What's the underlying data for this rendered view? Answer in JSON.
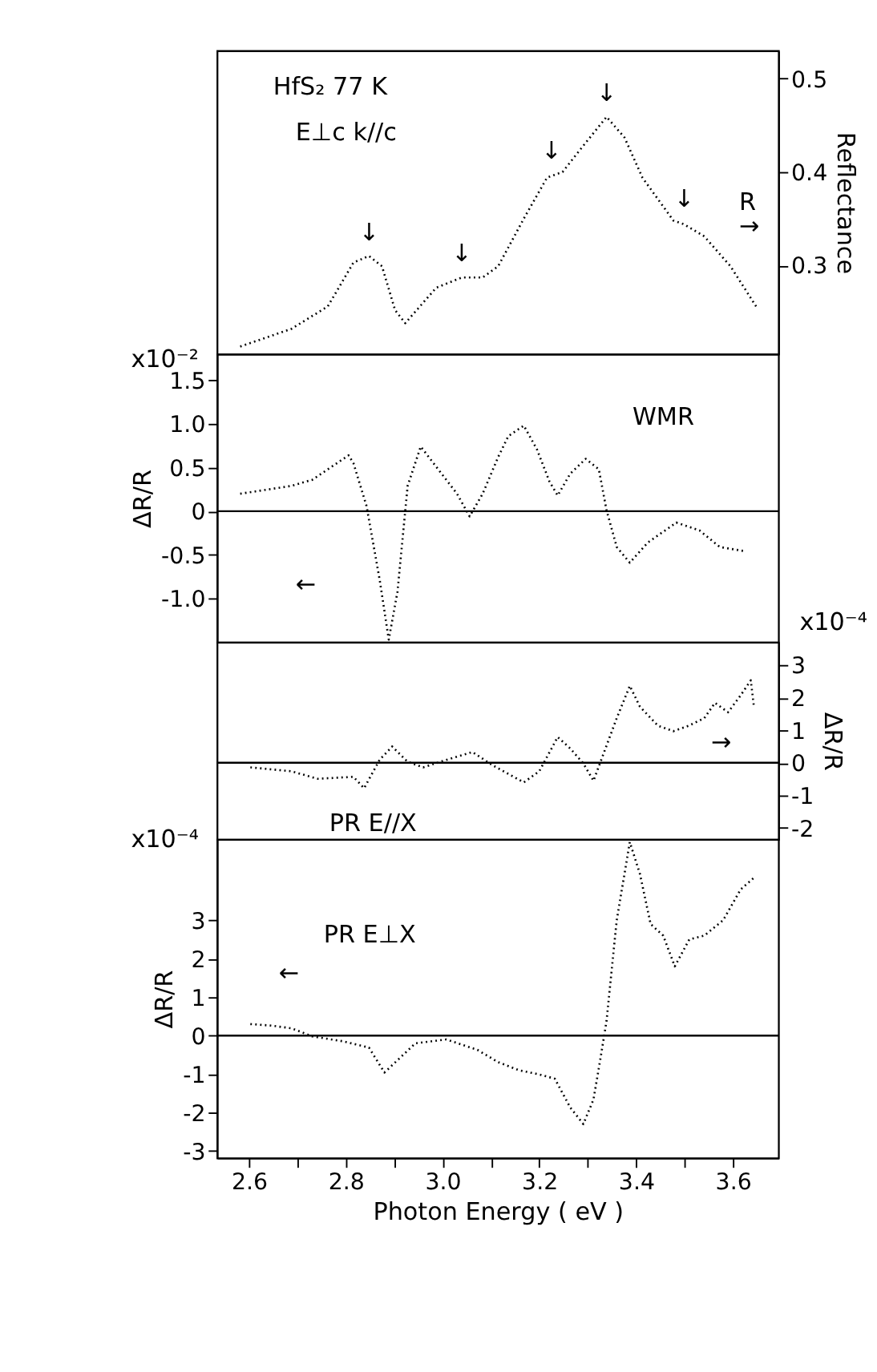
{
  "chart_data": [
    {
      "type": "line",
      "y2label": "Reflectance",
      "xlim": [
        2.534,
        3.694
      ],
      "y2lim": [
        0.205,
        0.53
      ],
      "y2ticks": [
        0.3,
        0.4,
        0.5
      ],
      "tick_labels": "y2",
      "line_style": "dotted",
      "series": [
        {
          "color": "#000000",
          "axis": "y2",
          "x": [
            2.582,
            2.688,
            2.763,
            2.816,
            2.848,
            2.875,
            2.902,
            2.923,
            2.987,
            3.04,
            3.083,
            3.115,
            3.168,
            3.216,
            3.248,
            3.286,
            3.339,
            3.376,
            3.413,
            3.477,
            3.499,
            3.541,
            3.595,
            3.648
          ],
          "values": [
            0.213,
            0.232,
            0.256,
            0.303,
            0.31,
            0.299,
            0.252,
            0.238,
            0.276,
            0.287,
            0.287,
            0.299,
            0.35,
            0.394,
            0.4,
            0.425,
            0.459,
            0.437,
            0.394,
            0.348,
            0.344,
            0.331,
            0.299,
            0.256
          ]
        }
      ],
      "annotations": [
        "HfS₂  77 K",
        "E⊥c   k//c",
        "R",
        "→",
        "↓",
        "↓",
        "↓",
        "↓",
        "↓"
      ]
    },
    {
      "type": "line",
      "ylabel": "ΔR/R",
      "xlim": [
        2.534,
        3.694
      ],
      "ylim": [
        -1.5,
        1.8
      ],
      "yticks": [
        1.5,
        {
          "value": 1.0,
          "label": "1.0"
        },
        0.5,
        0,
        -0.5,
        {
          "value": -1.0,
          "label": "-1.0"
        }
      ],
      "tick_labels": "y",
      "line_style": "dotted",
      "series": [
        {
          "color": "#000000",
          "x": [
            2.582,
            2.688,
            2.731,
            2.806,
            2.816,
            2.843,
            2.87,
            2.889,
            2.907,
            2.928,
            2.955,
            2.998,
            3.03,
            3.056,
            3.083,
            3.115,
            3.136,
            3.168,
            3.195,
            3.221,
            3.238,
            3.264,
            3.296,
            3.323,
            3.339,
            3.36,
            3.387,
            3.424,
            3.483,
            3.531,
            3.573,
            3.627
          ],
          "values": [
            0.2,
            0.29,
            0.36,
            0.64,
            0.55,
            0.06,
            -0.78,
            -1.47,
            -0.92,
            0.29,
            0.74,
            0.43,
            0.2,
            -0.06,
            0.2,
            0.62,
            0.86,
            0.98,
            0.71,
            0.34,
            0.18,
            0.43,
            0.6,
            0.48,
            0.01,
            -0.41,
            -0.59,
            -0.36,
            -0.13,
            -0.22,
            -0.41,
            -0.46
          ]
        }
      ],
      "ref_lines": [
        {
          "axis": "y",
          "value": 0
        }
      ],
      "annotations": [
        "x10⁻²",
        "WMR",
        "←"
      ]
    },
    {
      "type": "line",
      "y2label": "ΔR/R",
      "xlim": [
        2.534,
        3.694
      ],
      "y2lim": [
        -2.35,
        3.7
      ],
      "y2ticks": [
        3,
        2,
        1,
        0,
        -1,
        -2
      ],
      "tick_labels": "y2",
      "line_style": "dotted",
      "series": [
        {
          "color": "#000000",
          "axis": "y2",
          "x": [
            2.603,
            2.688,
            2.742,
            2.816,
            2.838,
            2.87,
            2.896,
            2.928,
            2.96,
            3.008,
            3.062,
            3.104,
            3.168,
            3.2,
            3.238,
            3.264,
            3.291,
            3.312,
            3.328,
            3.36,
            3.387,
            3.408,
            3.445,
            3.477,
            3.509,
            3.541,
            3.563,
            3.59,
            3.616,
            3.637,
            3.643
          ],
          "values": [
            -0.14,
            -0.26,
            -0.49,
            -0.43,
            -0.78,
            0.09,
            0.5,
            0.03,
            -0.14,
            0.09,
            0.33,
            -0.08,
            -0.6,
            -0.26,
            0.79,
            0.44,
            -0.02,
            -0.55,
            0.09,
            1.37,
            2.36,
            1.72,
            1.14,
            0.97,
            1.14,
            1.37,
            1.84,
            1.55,
            2.07,
            2.53,
            1.78
          ]
        }
      ],
      "ref_lines": [
        {
          "axis": "y2",
          "value": 0
        }
      ],
      "annotations": [
        "x10⁻⁴",
        "→",
        "PR  E//X"
      ]
    },
    {
      "type": "line",
      "ylabel": "ΔR/R",
      "xlabel": "Photon Energy  ( eV )",
      "xlim": [
        2.534,
        3.694
      ],
      "ylim": [
        -3.18,
        5.1
      ],
      "yticks": [
        -3,
        -2,
        -1,
        0,
        1,
        2,
        3
      ],
      "line_style": "dotted",
      "xticks": [
        2.6,
        {
          "value": 2.7,
          "label": null
        },
        2.8,
        {
          "value": 2.9,
          "label": null
        },
        {
          "value": 3.0,
          "label": "3.0"
        },
        {
          "value": 3.1,
          "label": null
        },
        3.2,
        {
          "value": 3.3,
          "label": null
        },
        3.4,
        {
          "value": 3.5,
          "label": null
        },
        3.6
      ],
      "series": [
        {
          "color": "#000000",
          "x": [
            2.603,
            2.646,
            2.688,
            2.731,
            2.795,
            2.848,
            2.88,
            2.912,
            2.944,
            3.008,
            3.072,
            3.115,
            3.158,
            3.2,
            3.232,
            3.264,
            3.291,
            3.312,
            3.328,
            3.339,
            3.36,
            3.387,
            3.408,
            3.43,
            3.456,
            3.48,
            3.51,
            3.541,
            3.58,
            3.616,
            3.643
          ],
          "values": [
            0.3,
            0.26,
            0.19,
            -0.02,
            -0.15,
            -0.31,
            -0.96,
            -0.58,
            -0.2,
            -0.1,
            -0.37,
            -0.69,
            -0.9,
            -1.01,
            -1.12,
            -1.87,
            -2.3,
            -1.66,
            -0.47,
            0.39,
            3.0,
            5.03,
            4.2,
            2.9,
            2.6,
            1.8,
            2.5,
            2.6,
            3.0,
            3.8,
            4.1
          ]
        }
      ],
      "ref_lines": [
        {
          "axis": "y",
          "value": 0
        }
      ],
      "annotations": [
        "x10⁻⁴",
        "PR  E⊥X",
        "←"
      ]
    }
  ]
}
